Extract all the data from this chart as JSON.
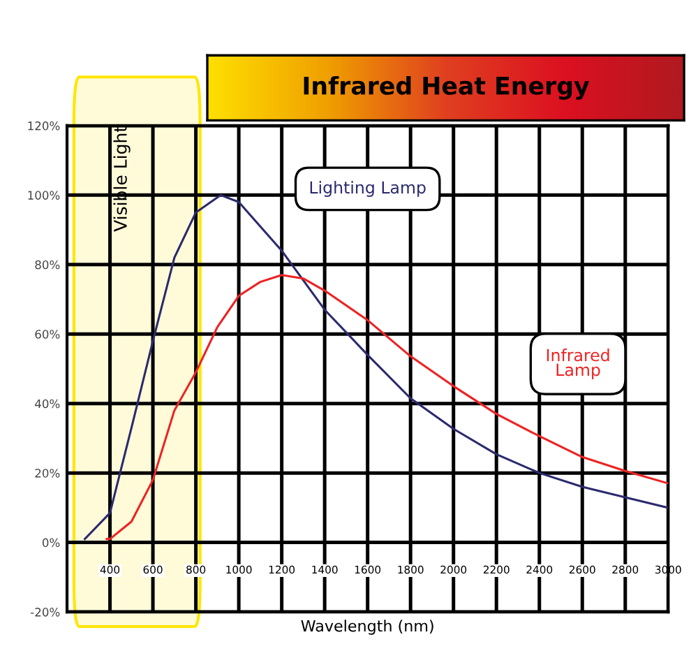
{
  "chart_data": {
    "type": "line",
    "title": "Infrared Heat Energy",
    "xlabel": "Wavelength (nm)",
    "xlim": [
      200,
      3000
    ],
    "xticks": [
      400,
      600,
      800,
      1000,
      1200,
      1400,
      1600,
      1800,
      2000,
      2200,
      2400,
      2600,
      2800,
      3000
    ],
    "ylim": [
      -20,
      120
    ],
    "yticks": [
      {
        "value": -20,
        "label": "-20%"
      },
      {
        "value": 0,
        "label": "0%"
      },
      {
        "value": 20,
        "label": "20%"
      },
      {
        "value": 40,
        "label": "40%"
      },
      {
        "value": 60,
        "label": "60%"
      },
      {
        "value": 80,
        "label": "80%"
      },
      {
        "value": 100,
        "label": "100%"
      },
      {
        "value": 120,
        "label": "120%"
      }
    ],
    "grid": true,
    "marker": "none",
    "line_style": "solid",
    "bands": [
      {
        "axis": "x",
        "from": 232,
        "to": 820,
        "label": "Visible Light",
        "color": "#ffe600"
      }
    ],
    "series": [
      {
        "name": "Lighting Lamp",
        "color": "#2b2a6e",
        "x": [
          283,
          400,
          500,
          600,
          700,
          800,
          916,
          1000,
          1200,
          1400,
          1600,
          1800,
          2000,
          2200,
          2400,
          2600,
          2800,
          3000
        ],
        "values": [
          1,
          8.5,
          33,
          58,
          82,
          95,
          100,
          98,
          84,
          67,
          54,
          41.5,
          32.7,
          25.4,
          20,
          16,
          13,
          10
        ]
      },
      {
        "name": "Infrared Lamp",
        "color": "#ee2222",
        "x": [
          385,
          400,
          500,
          600,
          700,
          800,
          900,
          1000,
          1100,
          1200,
          1300,
          1400,
          1600,
          1800,
          2000,
          2200,
          2400,
          2600,
          2800,
          3000
        ],
        "values": [
          1,
          1,
          6,
          18,
          38,
          49,
          62,
          71,
          75,
          77,
          76,
          72.5,
          64,
          53.6,
          45,
          37,
          30.6,
          24.6,
          20.6,
          17
        ]
      }
    ]
  }
}
